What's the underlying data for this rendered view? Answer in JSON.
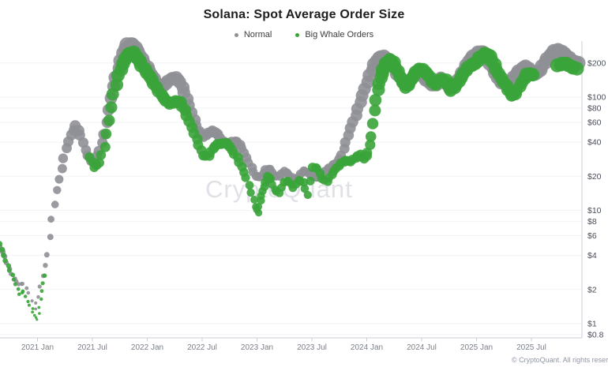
{
  "title": "Solana: Spot Average Order Size",
  "legend": [
    {
      "label": "Normal",
      "color": "#8f9096"
    },
    {
      "label": "Big Whale Orders",
      "color": "#3aa43a"
    }
  ],
  "watermark": "CryptoQuant",
  "attribution": "© CryptoQuant. All rights reserved.",
  "colors": {
    "normal_series": "#8f9096",
    "whale_series": "#3aa43a",
    "axis_line": "#ccced6",
    "gridline": "#f2f3f6",
    "x_tick_label": "#7b8089",
    "y_tick_label": "#4a4e59"
  },
  "chart_data": {
    "type": "scatter",
    "title": "Solana: Spot Average Order Size",
    "x_axis": {
      "type": "time",
      "range_decimal_years": [
        2020.66,
        2025.96
      ],
      "ticks": [
        {
          "label": "2021 Jan",
          "t": 2021.0
        },
        {
          "label": "2021 Jul",
          "t": 2021.5
        },
        {
          "label": "2022 Jan",
          "t": 2022.0
        },
        {
          "label": "2022 Jul",
          "t": 2022.5
        },
        {
          "label": "2023 Jan",
          "t": 2023.0
        },
        {
          "label": "2023 Jul",
          "t": 2023.5
        },
        {
          "label": "2024 Jan",
          "t": 2024.0
        },
        {
          "label": "2024 Jul",
          "t": 2024.5
        },
        {
          "label": "2025 Jan",
          "t": 2025.0
        },
        {
          "label": "2025 Jul",
          "t": 2025.5
        }
      ]
    },
    "y_axis": {
      "type": "log",
      "unit": "USD",
      "range": [
        0.8,
        300
      ],
      "grid": true,
      "ticks": [
        {
          "label": "$200",
          "v": 200
        },
        {
          "label": "$100",
          "v": 100
        },
        {
          "label": "$80",
          "v": 80
        },
        {
          "label": "$60",
          "v": 60
        },
        {
          "label": "$40",
          "v": 40
        },
        {
          "label": "$20",
          "v": 20
        },
        {
          "label": "$10",
          "v": 10
        },
        {
          "label": "$8",
          "v": 8
        },
        {
          "label": "$6",
          "v": 6
        },
        {
          "label": "$4",
          "v": 4
        },
        {
          "label": "$2",
          "v": 2
        },
        {
          "label": "$1",
          "v": 1
        },
        {
          "label": "$0.8",
          "v": 0.8
        }
      ]
    },
    "legend_position": "top-center",
    "marker_note": "dot radius scales with order size (log)",
    "series": [
      {
        "name": "Normal",
        "color": "#8f9096",
        "points": [
          [
            2020.66,
            4.8
          ],
          [
            2020.7,
            4.0
          ],
          [
            2020.74,
            3.1
          ],
          [
            2020.79,
            2.5
          ],
          [
            2020.83,
            2.2
          ],
          [
            2020.87,
            2.2
          ],
          [
            2020.92,
            1.84
          ],
          [
            2020.98,
            1.35
          ],
          [
            2021.0,
            1.75
          ],
          [
            2021.05,
            2.7
          ],
          [
            2021.09,
            4.1
          ],
          [
            2021.13,
            8.3
          ],
          [
            2021.18,
            14.8
          ],
          [
            2021.22,
            22.9
          ],
          [
            2021.26,
            35.2
          ],
          [
            2021.31,
            47
          ],
          [
            2021.35,
            57
          ],
          [
            2021.39,
            47
          ],
          [
            2021.44,
            34.1
          ],
          [
            2021.48,
            26.8
          ],
          [
            2021.52,
            26.8
          ],
          [
            2021.56,
            33
          ],
          [
            2021.61,
            47
          ],
          [
            2021.65,
            78.5
          ],
          [
            2021.69,
            127
          ],
          [
            2021.74,
            181
          ],
          [
            2021.78,
            242
          ],
          [
            2021.82,
            284
          ],
          [
            2021.87,
            284
          ],
          [
            2021.91,
            254
          ],
          [
            2021.95,
            219
          ],
          [
            2022.0,
            187
          ],
          [
            2022.04,
            159
          ],
          [
            2022.08,
            136
          ],
          [
            2022.13,
            119
          ],
          [
            2022.17,
            129
          ],
          [
            2022.21,
            142
          ],
          [
            2022.26,
            149
          ],
          [
            2022.3,
            138
          ],
          [
            2022.34,
            112
          ],
          [
            2022.38,
            85
          ],
          [
            2022.43,
            62
          ],
          [
            2022.47,
            48.5
          ],
          [
            2022.51,
            44
          ],
          [
            2022.56,
            48
          ],
          [
            2022.6,
            51
          ],
          [
            2022.64,
            48
          ],
          [
            2022.69,
            41
          ],
          [
            2022.73,
            37.6
          ],
          [
            2022.77,
            39.4
          ],
          [
            2022.82,
            39.4
          ],
          [
            2022.86,
            35.2
          ],
          [
            2022.9,
            29.5
          ],
          [
            2022.95,
            24.4
          ],
          [
            2022.99,
            20.4
          ],
          [
            2023.03,
            19.8
          ],
          [
            2023.08,
            22.5
          ],
          [
            2023.12,
            22.5
          ],
          [
            2023.16,
            19.8
          ],
          [
            2023.2,
            20.1
          ],
          [
            2023.25,
            22.5
          ],
          [
            2023.29,
            21.1
          ],
          [
            2023.33,
            18.8
          ],
          [
            2023.38,
            19.5
          ],
          [
            2023.42,
            21.8
          ],
          [
            2023.46,
            21.1
          ],
          [
            2023.51,
            19.8
          ],
          [
            2023.55,
            19.8
          ],
          [
            2023.59,
            21.8
          ],
          [
            2023.64,
            23.2
          ],
          [
            2023.68,
            24.4
          ],
          [
            2023.72,
            25.6
          ],
          [
            2023.77,
            30
          ],
          [
            2023.81,
            39.4
          ],
          [
            2023.85,
            53.5
          ],
          [
            2023.9,
            70.3
          ],
          [
            2023.94,
            92.3
          ],
          [
            2023.98,
            119
          ],
          [
            2024.03,
            154
          ],
          [
            2024.07,
            190
          ],
          [
            2024.11,
            216
          ],
          [
            2024.15,
            227
          ],
          [
            2024.2,
            216
          ],
          [
            2024.24,
            193
          ],
          [
            2024.28,
            162
          ],
          [
            2024.33,
            136
          ],
          [
            2024.37,
            129
          ],
          [
            2024.41,
            145
          ],
          [
            2024.46,
            157
          ],
          [
            2024.5,
            157
          ],
          [
            2024.54,
            145
          ],
          [
            2024.59,
            131
          ],
          [
            2024.63,
            129
          ],
          [
            2024.67,
            145
          ],
          [
            2024.72,
            129
          ],
          [
            2024.76,
            117
          ],
          [
            2024.8,
            131
          ],
          [
            2024.85,
            154
          ],
          [
            2024.89,
            181
          ],
          [
            2024.93,
            209
          ],
          [
            2024.97,
            227
          ],
          [
            2025.02,
            242
          ],
          [
            2025.06,
            242
          ],
          [
            2025.1,
            216
          ],
          [
            2025.15,
            181
          ],
          [
            2025.19,
            152
          ],
          [
            2025.23,
            136
          ],
          [
            2025.28,
            129
          ],
          [
            2025.32,
            138
          ],
          [
            2025.36,
            157
          ],
          [
            2025.41,
            175
          ],
          [
            2025.45,
            187
          ],
          [
            2025.49,
            175
          ],
          [
            2025.54,
            164
          ],
          [
            2025.58,
            175
          ],
          [
            2025.62,
            200
          ],
          [
            2025.67,
            227
          ],
          [
            2025.71,
            249
          ],
          [
            2025.75,
            258
          ],
          [
            2025.8,
            245
          ],
          [
            2025.84,
            227
          ],
          [
            2025.88,
            209
          ],
          [
            2025.93,
            200
          ]
        ]
      },
      {
        "name": "Big Whale Orders",
        "color": "#3aa43a",
        "points": [
          [
            2020.66,
            5.1
          ],
          [
            2020.69,
            4.1
          ],
          [
            2020.73,
            3.3
          ],
          [
            2020.77,
            2.7
          ],
          [
            2020.8,
            2.2
          ],
          [
            2020.84,
            1.78
          ],
          [
            2020.87,
            1.9
          ],
          [
            2020.91,
            1.57
          ],
          [
            2020.95,
            1.38
          ],
          [
            2020.97,
            1.21
          ],
          [
            2021.0,
            1.1
          ],
          [
            2021.02,
            1.38
          ],
          [
            2021.04,
            1.9
          ],
          [
            2021.06,
            2.6
          ],
          [
            2021.48,
            29
          ],
          [
            2021.52,
            24
          ],
          [
            2021.56,
            26.8
          ],
          [
            2021.61,
            37
          ],
          [
            2021.65,
            62.8
          ],
          [
            2021.69,
            105
          ],
          [
            2021.74,
            152
          ],
          [
            2021.78,
            193
          ],
          [
            2021.82,
            234
          ],
          [
            2021.87,
            249
          ],
          [
            2021.91,
            227
          ],
          [
            2021.95,
            193
          ],
          [
            2022.0,
            164
          ],
          [
            2022.04,
            140
          ],
          [
            2022.08,
            119
          ],
          [
            2022.13,
            103
          ],
          [
            2022.17,
            93.8
          ],
          [
            2022.21,
            89.3
          ],
          [
            2022.26,
            93.8
          ],
          [
            2022.3,
            90.8
          ],
          [
            2022.34,
            76
          ],
          [
            2022.38,
            59.8
          ],
          [
            2022.43,
            47
          ],
          [
            2022.47,
            37.6
          ],
          [
            2022.51,
            31
          ],
          [
            2022.56,
            31
          ],
          [
            2022.6,
            35.8
          ],
          [
            2022.64,
            38.2
          ],
          [
            2022.69,
            38.2
          ],
          [
            2022.73,
            38.2
          ],
          [
            2022.77,
            33.6
          ],
          [
            2022.82,
            29.5
          ],
          [
            2022.86,
            24.8
          ],
          [
            2022.9,
            19.8
          ],
          [
            2022.95,
            14.4
          ],
          [
            2022.99,
            10.6
          ],
          [
            2023.01,
            9.3
          ],
          [
            2023.03,
            12.0
          ],
          [
            2023.05,
            14.8
          ],
          [
            2023.08,
            18.0
          ],
          [
            2023.1,
            20.4
          ],
          [
            2023.12,
            19.2
          ],
          [
            2023.16,
            15.1
          ],
          [
            2023.2,
            13.9
          ],
          [
            2023.25,
            17.4
          ],
          [
            2023.29,
            18.0
          ],
          [
            2023.33,
            16.0
          ],
          [
            2023.38,
            18.8
          ],
          [
            2023.42,
            18.0
          ],
          [
            2023.46,
            13.7
          ],
          [
            2023.51,
            23.6
          ],
          [
            2023.55,
            22.9
          ],
          [
            2023.59,
            18.8
          ],
          [
            2023.64,
            18.0
          ],
          [
            2023.68,
            21.1
          ],
          [
            2023.72,
            24.0
          ],
          [
            2023.77,
            26.4
          ],
          [
            2023.81,
            27.3
          ],
          [
            2023.85,
            26.4
          ],
          [
            2023.9,
            28.6
          ],
          [
            2023.94,
            31
          ],
          [
            2023.98,
            29
          ],
          [
            2024.01,
            33
          ],
          [
            2024.04,
            45.5
          ],
          [
            2024.07,
            76
          ],
          [
            2024.1,
            114
          ],
          [
            2024.13,
            145
          ],
          [
            2024.15,
            173
          ],
          [
            2024.18,
            200
          ],
          [
            2024.21,
            216
          ],
          [
            2024.24,
            206
          ],
          [
            2024.28,
            170
          ],
          [
            2024.33,
            133
          ],
          [
            2024.36,
            119
          ],
          [
            2024.39,
            131
          ],
          [
            2024.43,
            157
          ],
          [
            2024.47,
            178
          ],
          [
            2024.51,
            178
          ],
          [
            2024.56,
            159
          ],
          [
            2024.6,
            136
          ],
          [
            2024.63,
            127
          ],
          [
            2024.67,
            140
          ],
          [
            2024.72,
            140
          ],
          [
            2024.75,
            125
          ],
          [
            2024.77,
            117
          ],
          [
            2024.82,
            131
          ],
          [
            2024.86,
            149
          ],
          [
            2024.9,
            170
          ],
          [
            2024.95,
            187
          ],
          [
            2024.99,
            196
          ],
          [
            2025.03,
            223
          ],
          [
            2025.08,
            245
          ],
          [
            2025.12,
            234
          ],
          [
            2025.16,
            196
          ],
          [
            2025.2,
            159
          ],
          [
            2025.25,
            133
          ],
          [
            2025.29,
            114
          ],
          [
            2025.32,
            103
          ],
          [
            2025.35,
            108
          ],
          [
            2025.39,
            127
          ],
          [
            2025.44,
            149
          ],
          [
            2025.46,
            159
          ],
          [
            2025.49,
            157
          ],
          [
            2025.51,
            154
          ],
          [
            2025.74,
            187
          ],
          [
            2025.78,
            196
          ],
          [
            2025.82,
            200
          ],
          [
            2025.86,
            190
          ],
          [
            2025.91,
            181
          ]
        ]
      }
    ]
  }
}
